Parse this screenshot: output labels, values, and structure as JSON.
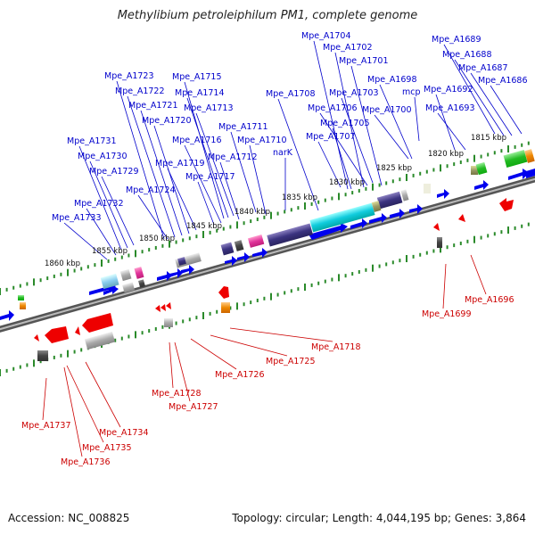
{
  "title": "Methylibium petroleiphilum PM1, complete genome",
  "footer": {
    "accession": "Accession: NC_008825",
    "summary": "Topology: circular; Length: 4,044,195 bp; Genes: 3,864"
  },
  "colors": {
    "forward_gene": "#0000ee",
    "reverse_gene": "#ee0000",
    "forward_label": "#0000cc",
    "reverse_label": "#cc0000",
    "backbone": "#777777",
    "tick": "#2a8a2a"
  },
  "scale_labels": [
    "1815 kbp",
    "1820 kbp",
    "1825 kbp",
    "1830 kbp",
    "1835 kbp",
    "1840 kbp",
    "1845 kbp",
    "1850 kbp",
    "1855 kbp",
    "1860 kbp"
  ],
  "forward_gene_labels": [
    "Mpe_A1704",
    "Mpe_A1702",
    "Mpe_A1701",
    "Mpe_A1689",
    "Mpe_A1688",
    "Mpe_A1687",
    "Mpe_A1686",
    "Mpe_A1698",
    "mcp",
    "Mpe_A1692",
    "Mpe_A1693",
    "Mpe_A1708",
    "Mpe_A1703",
    "Mpe_A1706",
    "Mpe_A1700",
    "Mpe_A1705",
    "Mpe_A1707",
    "Mpe_A1723",
    "Mpe_A1715",
    "Mpe_A1722",
    "Mpe_A1714",
    "Mpe_A1721",
    "Mpe_A1713",
    "Mpe_A1720",
    "Mpe_A1711",
    "Mpe_A1716",
    "Mpe_A1710",
    "Mpe_A1731",
    "Mpe_A1719",
    "Mpe_A1712",
    "narK",
    "Mpe_A1730",
    "Mpe_A1729",
    "Mpe_A1717",
    "Mpe_A1724",
    "Mpe_A1732",
    "Mpe_A1733"
  ],
  "reverse_gene_labels": [
    "Mpe_A1696",
    "Mpe_A1699",
    "Mpe_A1718",
    "Mpe_A1725",
    "Mpe_A1726",
    "Mpe_A1728",
    "Mpe_A1727",
    "Mpe_A1737",
    "Mpe_A1734",
    "Mpe_A1735",
    "Mpe_A1736"
  ]
}
